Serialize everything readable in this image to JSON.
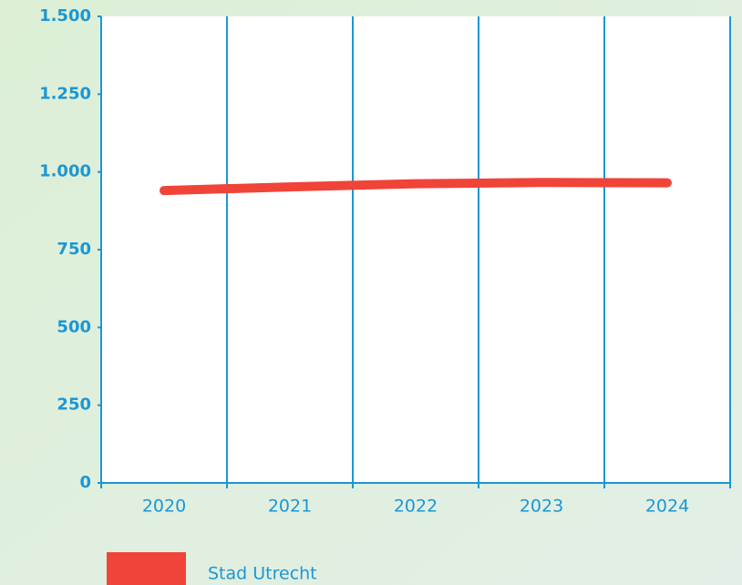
{
  "chart_data": {
    "type": "line",
    "categories": [
      "2020",
      "2021",
      "2022",
      "2023",
      "2024"
    ],
    "series": [
      {
        "name": "Stad Utrecht",
        "color": "#f04438",
        "values": [
          940,
          952,
          962,
          966,
          965
        ]
      }
    ],
    "ylim": [
      0,
      1500
    ],
    "yticks": [
      0,
      250,
      500,
      750,
      {
        "value": 1000,
        "label": "1.000"
      },
      {
        "value": 1250,
        "label": "1.250"
      },
      {
        "value": 1500,
        "label": "1.500"
      }
    ],
    "grid": false
  }
}
